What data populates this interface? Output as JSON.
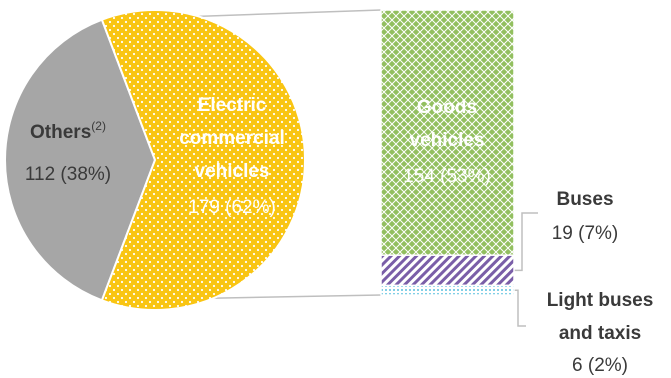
{
  "colors": {
    "others": "#a6a6a6",
    "electric": "#f9c513",
    "goods": "#92bf5f",
    "buses": "#7a5ea8",
    "light": "#5bc0de",
    "electric_text": "#ffffff",
    "dark_text": "#3a3a3a",
    "connector": "#bfbfbf"
  },
  "chart_data": {
    "type": "bar-of-pie",
    "pie": {
      "slices": [
        {
          "key": "others",
          "label": "Others",
          "superscript": "(2)",
          "value": 112,
          "value_text": "112 (38%)"
        },
        {
          "key": "electric",
          "label_lines": [
            "Electric",
            "commercial",
            "vehicles"
          ],
          "value": 179,
          "value_text": "179 (62%)"
        }
      ]
    },
    "bar": {
      "segments": [
        {
          "key": "goods",
          "label_lines": [
            "Goods",
            "vehicles"
          ],
          "value": 154,
          "value_text": "154 (53%)"
        },
        {
          "key": "buses",
          "label_lines": [
            "Buses"
          ],
          "value": 19,
          "value_text": "19 (7%)"
        },
        {
          "key": "light",
          "label_lines": [
            "Light buses",
            "and taxis"
          ],
          "value": 6,
          "value_text": "6 (2%)"
        }
      ]
    }
  }
}
